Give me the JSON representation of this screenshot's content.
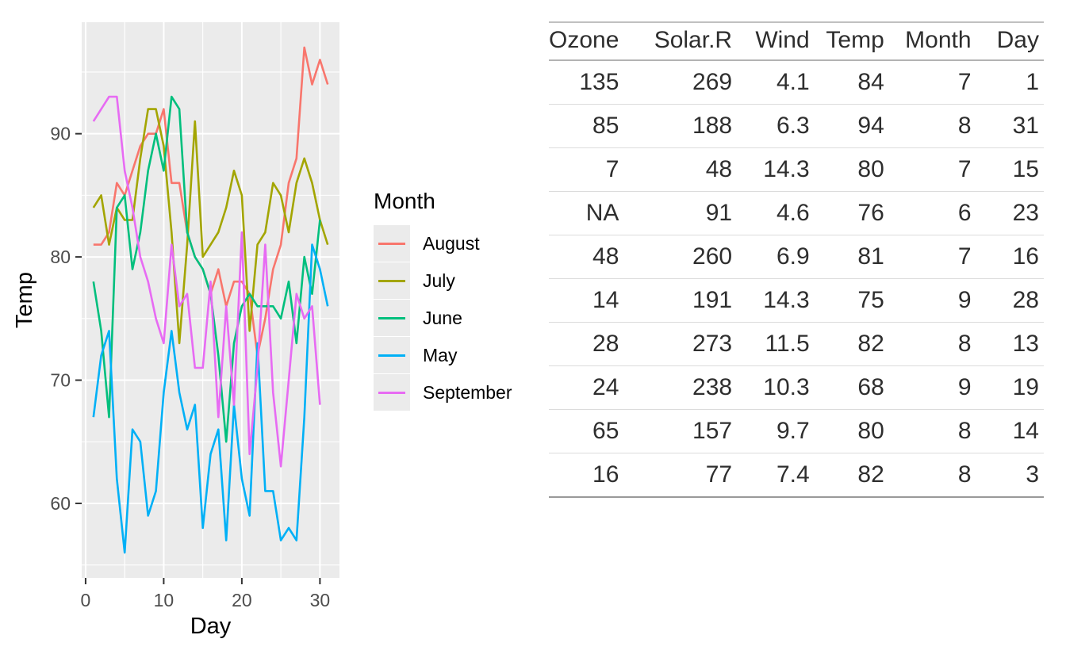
{
  "page": {
    "background": "#FFFFFF"
  },
  "chart_data": [
    {
      "type": "line",
      "title": "",
      "xlabel": "Day",
      "ylabel": "Temp",
      "legend_title": "Month",
      "legend_position": "right",
      "x_encoding": "x = day number, starting at 1, step 1",
      "xlim": [
        -0.5,
        32.5
      ],
      "ylim": [
        53.95,
        99.05
      ],
      "xticks": [
        0,
        10,
        20,
        30
      ],
      "yticks": [
        60,
        70,
        80,
        90
      ],
      "xticks_minor": [
        5,
        15,
        25
      ],
      "yticks_minor": [
        55,
        65,
        75,
        85,
        95
      ],
      "grid": "white major and minor gridlines on grey panel",
      "panel_bg": "#EBEBEB",
      "grid_color": "#FFFFFF",
      "tick_color": "#333333",
      "tick_label_color": "#4D4D4D",
      "axis_title_color": "#000000",
      "series": [
        {
          "name": "August",
          "color": "#F8766D",
          "values": [
            81,
            81,
            82,
            86,
            85,
            87,
            89,
            90,
            90,
            92,
            86,
            86,
            82,
            80,
            79,
            77,
            79,
            76,
            78,
            78,
            77,
            72,
            75,
            79,
            81,
            86,
            88,
            97,
            94,
            96,
            94
          ]
        },
        {
          "name": "July",
          "color": "#A3A500",
          "values": [
            84,
            85,
            81,
            84,
            83,
            83,
            88,
            92,
            92,
            89,
            82,
            73,
            81,
            91,
            80,
            81,
            82,
            84,
            87,
            85,
            74,
            81,
            82,
            86,
            85,
            82,
            86,
            88,
            86,
            83,
            81
          ]
        },
        {
          "name": "June",
          "color": "#00BF7D",
          "values": [
            78,
            74,
            67,
            84,
            85,
            79,
            82,
            87,
            90,
            87,
            93,
            92,
            82,
            80,
            79,
            77,
            72,
            65,
            73,
            76,
            77,
            76,
            76,
            76,
            75,
            78,
            73,
            80,
            77,
            83
          ]
        },
        {
          "name": "May",
          "color": "#00B0F6",
          "values": [
            67,
            72,
            74,
            62,
            56,
            66,
            65,
            59,
            61,
            69,
            74,
            69,
            66,
            68,
            58,
            64,
            66,
            57,
            68,
            62,
            59,
            73,
            61,
            61,
            57,
            58,
            57,
            67,
            81,
            79,
            76
          ]
        },
        {
          "name": "September",
          "color": "#E76BF3",
          "values": [
            91,
            92,
            93,
            93,
            87,
            84,
            80,
            78,
            75,
            73,
            81,
            76,
            77,
            71,
            71,
            78,
            67,
            76,
            68,
            82,
            64,
            71,
            81,
            69,
            63,
            70,
            77,
            75,
            76,
            68
          ]
        }
      ]
    },
    {
      "type": "table",
      "headers": [
        "Ozone",
        "Solar.R",
        "Wind",
        "Temp",
        "Month",
        "Day"
      ],
      "rows": [
        [
          "135",
          "269",
          "4.1",
          "84",
          "7",
          "1"
        ],
        [
          "85",
          "188",
          "6.3",
          "94",
          "8",
          "31"
        ],
        [
          "7",
          "48",
          "14.3",
          "80",
          "7",
          "15"
        ],
        [
          "NA",
          "91",
          "4.6",
          "76",
          "6",
          "23"
        ],
        [
          "48",
          "260",
          "6.9",
          "81",
          "7",
          "16"
        ],
        [
          "14",
          "191",
          "14.3",
          "75",
          "9",
          "28"
        ],
        [
          "28",
          "273",
          "11.5",
          "82",
          "8",
          "13"
        ],
        [
          "24",
          "238",
          "10.3",
          "68",
          "9",
          "19"
        ],
        [
          "65",
          "157",
          "9.7",
          "80",
          "8",
          "14"
        ],
        [
          "16",
          "77",
          "7.4",
          "82",
          "8",
          "3"
        ]
      ],
      "rule_colors": {
        "top": "#C0C0C0",
        "header_bottom": "#B3B3B3",
        "row": "#DCDCDC",
        "bottom": "#999999"
      }
    }
  ]
}
